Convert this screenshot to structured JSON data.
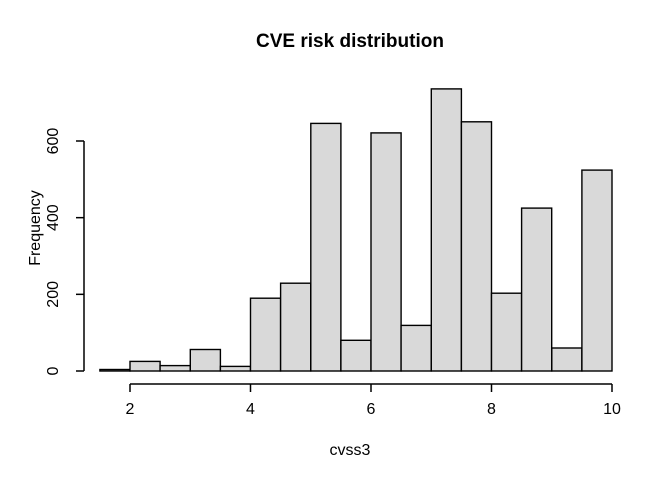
{
  "window": {
    "background_color": "#ffffff",
    "text_color": "#000000"
  },
  "chart_data": {
    "type": "bar",
    "subtype": "histogram",
    "title": "CVE risk distribution",
    "xlabel": "cvss3",
    "ylabel": "Frequency",
    "bin_edges": [
      1.5,
      2,
      2.5,
      3,
      3.5,
      4,
      4.5,
      5,
      5.5,
      6,
      6.5,
      7,
      7.5,
      8,
      8.5,
      9,
      9.5,
      10
    ],
    "values": [
      4,
      25,
      14,
      56,
      12,
      190,
      229,
      646,
      80,
      621,
      119,
      736,
      650,
      203,
      425,
      60,
      524
    ],
    "x_ticks": [
      "2",
      "4",
      "6",
      "8",
      "10"
    ],
    "x_tick_values": [
      2,
      4,
      6,
      8,
      10
    ],
    "y_ticks": [
      "0",
      "200",
      "400",
      "600"
    ],
    "y_tick_values": [
      0,
      200,
      400,
      600
    ],
    "xlim": [
      1.5,
      10
    ],
    "ylim": [
      0,
      740
    ],
    "grid": false,
    "legend": null,
    "bar_fill": "#D9D9D9",
    "bar_stroke": "#000000",
    "axis_color": "#000000"
  }
}
